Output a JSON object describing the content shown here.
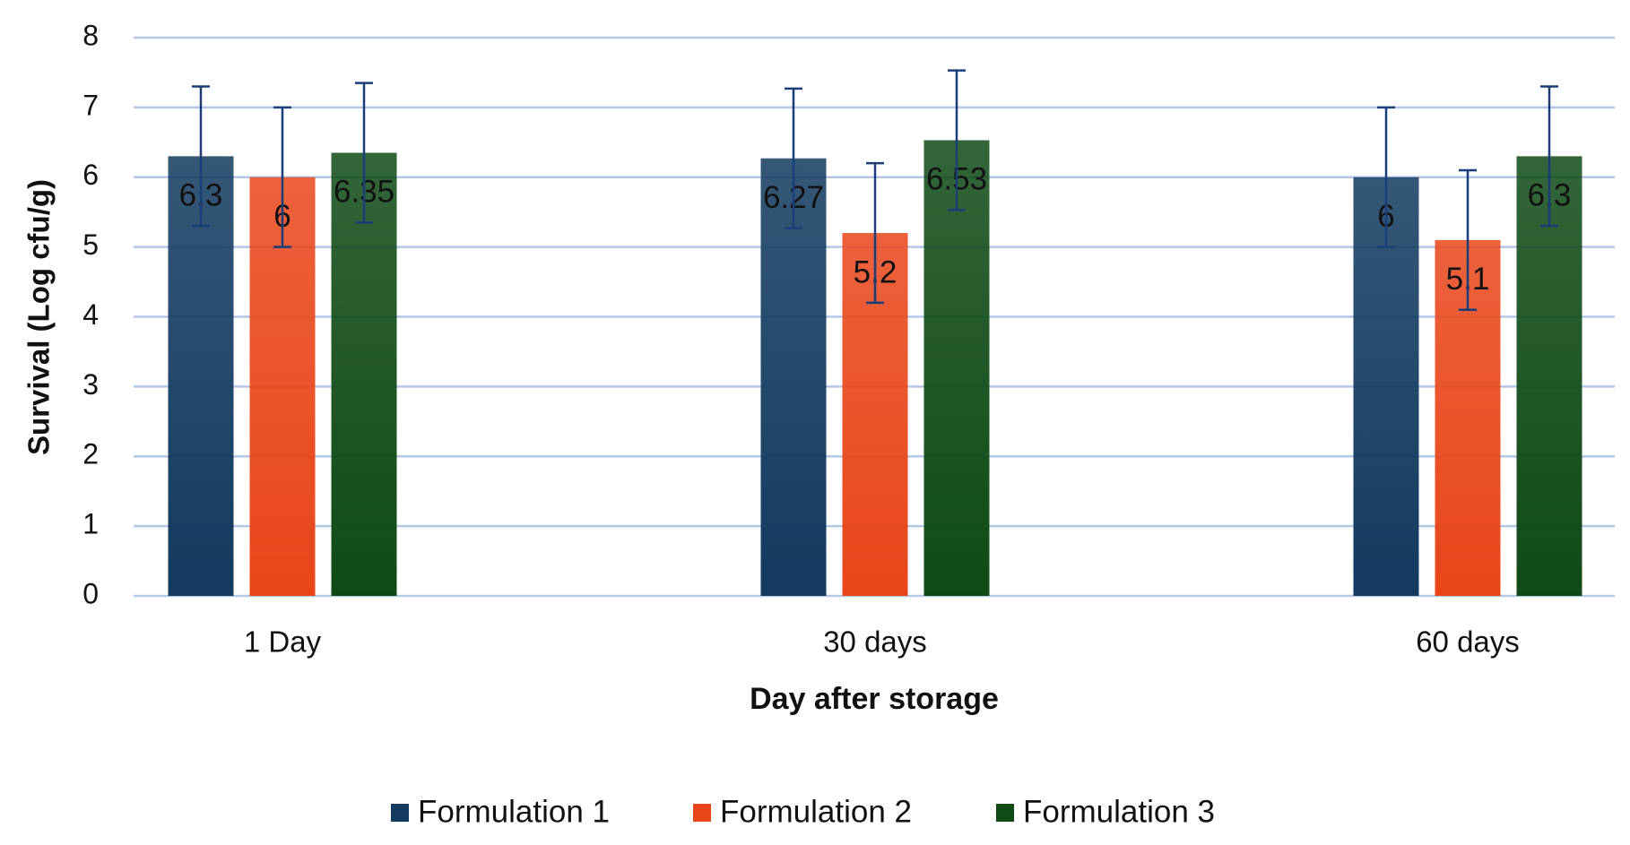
{
  "chart_data": {
    "type": "bar",
    "x_label": "Day after storage",
    "y_label": "Survival (Log cfu/g)",
    "categories": [
      "1 Day",
      "30 days",
      "60 days"
    ],
    "series": [
      {
        "name": "Formulation 1",
        "color": "#123a5e",
        "values": [
          6.3,
          6.27,
          6
        ],
        "errors": [
          1,
          1,
          1
        ]
      },
      {
        "name": "Formulation 2",
        "color": "#e8461a",
        "values": [
          6,
          5.2,
          5.1
        ],
        "errors": [
          1,
          1,
          1
        ]
      },
      {
        "name": "Formulation 3",
        "color": "#0f4a15",
        "values": [
          6.35,
          6.53,
          6.3
        ],
        "errors": [
          1,
          1,
          1
        ]
      }
    ],
    "ylim": [
      0,
      8
    ],
    "yticks": [
      0,
      1,
      2,
      3,
      4,
      5,
      6,
      7,
      8
    ],
    "grid": true,
    "legend": "bottom",
    "error_color": "#1a3e7a"
  }
}
